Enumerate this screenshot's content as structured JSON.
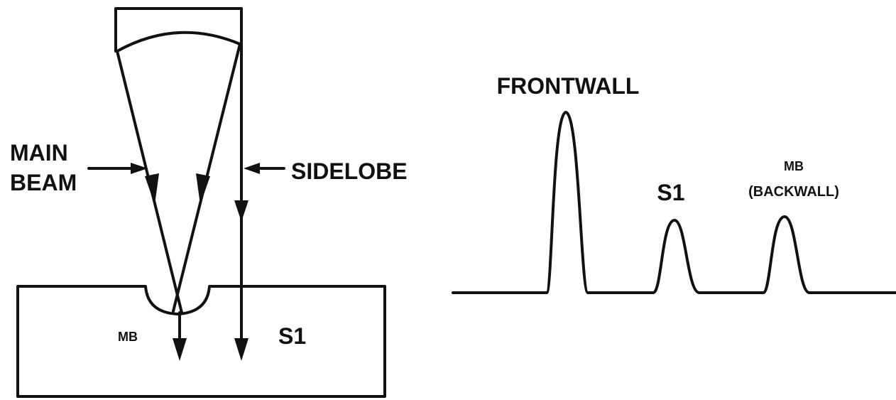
{
  "diagram": {
    "left": {
      "main_beam_label": [
        "MAIN",
        "BEAM"
      ],
      "sidelobe_label": "SIDELOBE",
      "mb_label": "MB",
      "s1_label": "S1"
    },
    "right": {
      "frontwall_label": "FRONTWALL",
      "s1_label": "S1",
      "mb_label": "MB",
      "backwall_label": "(BACKWALL)"
    }
  }
}
